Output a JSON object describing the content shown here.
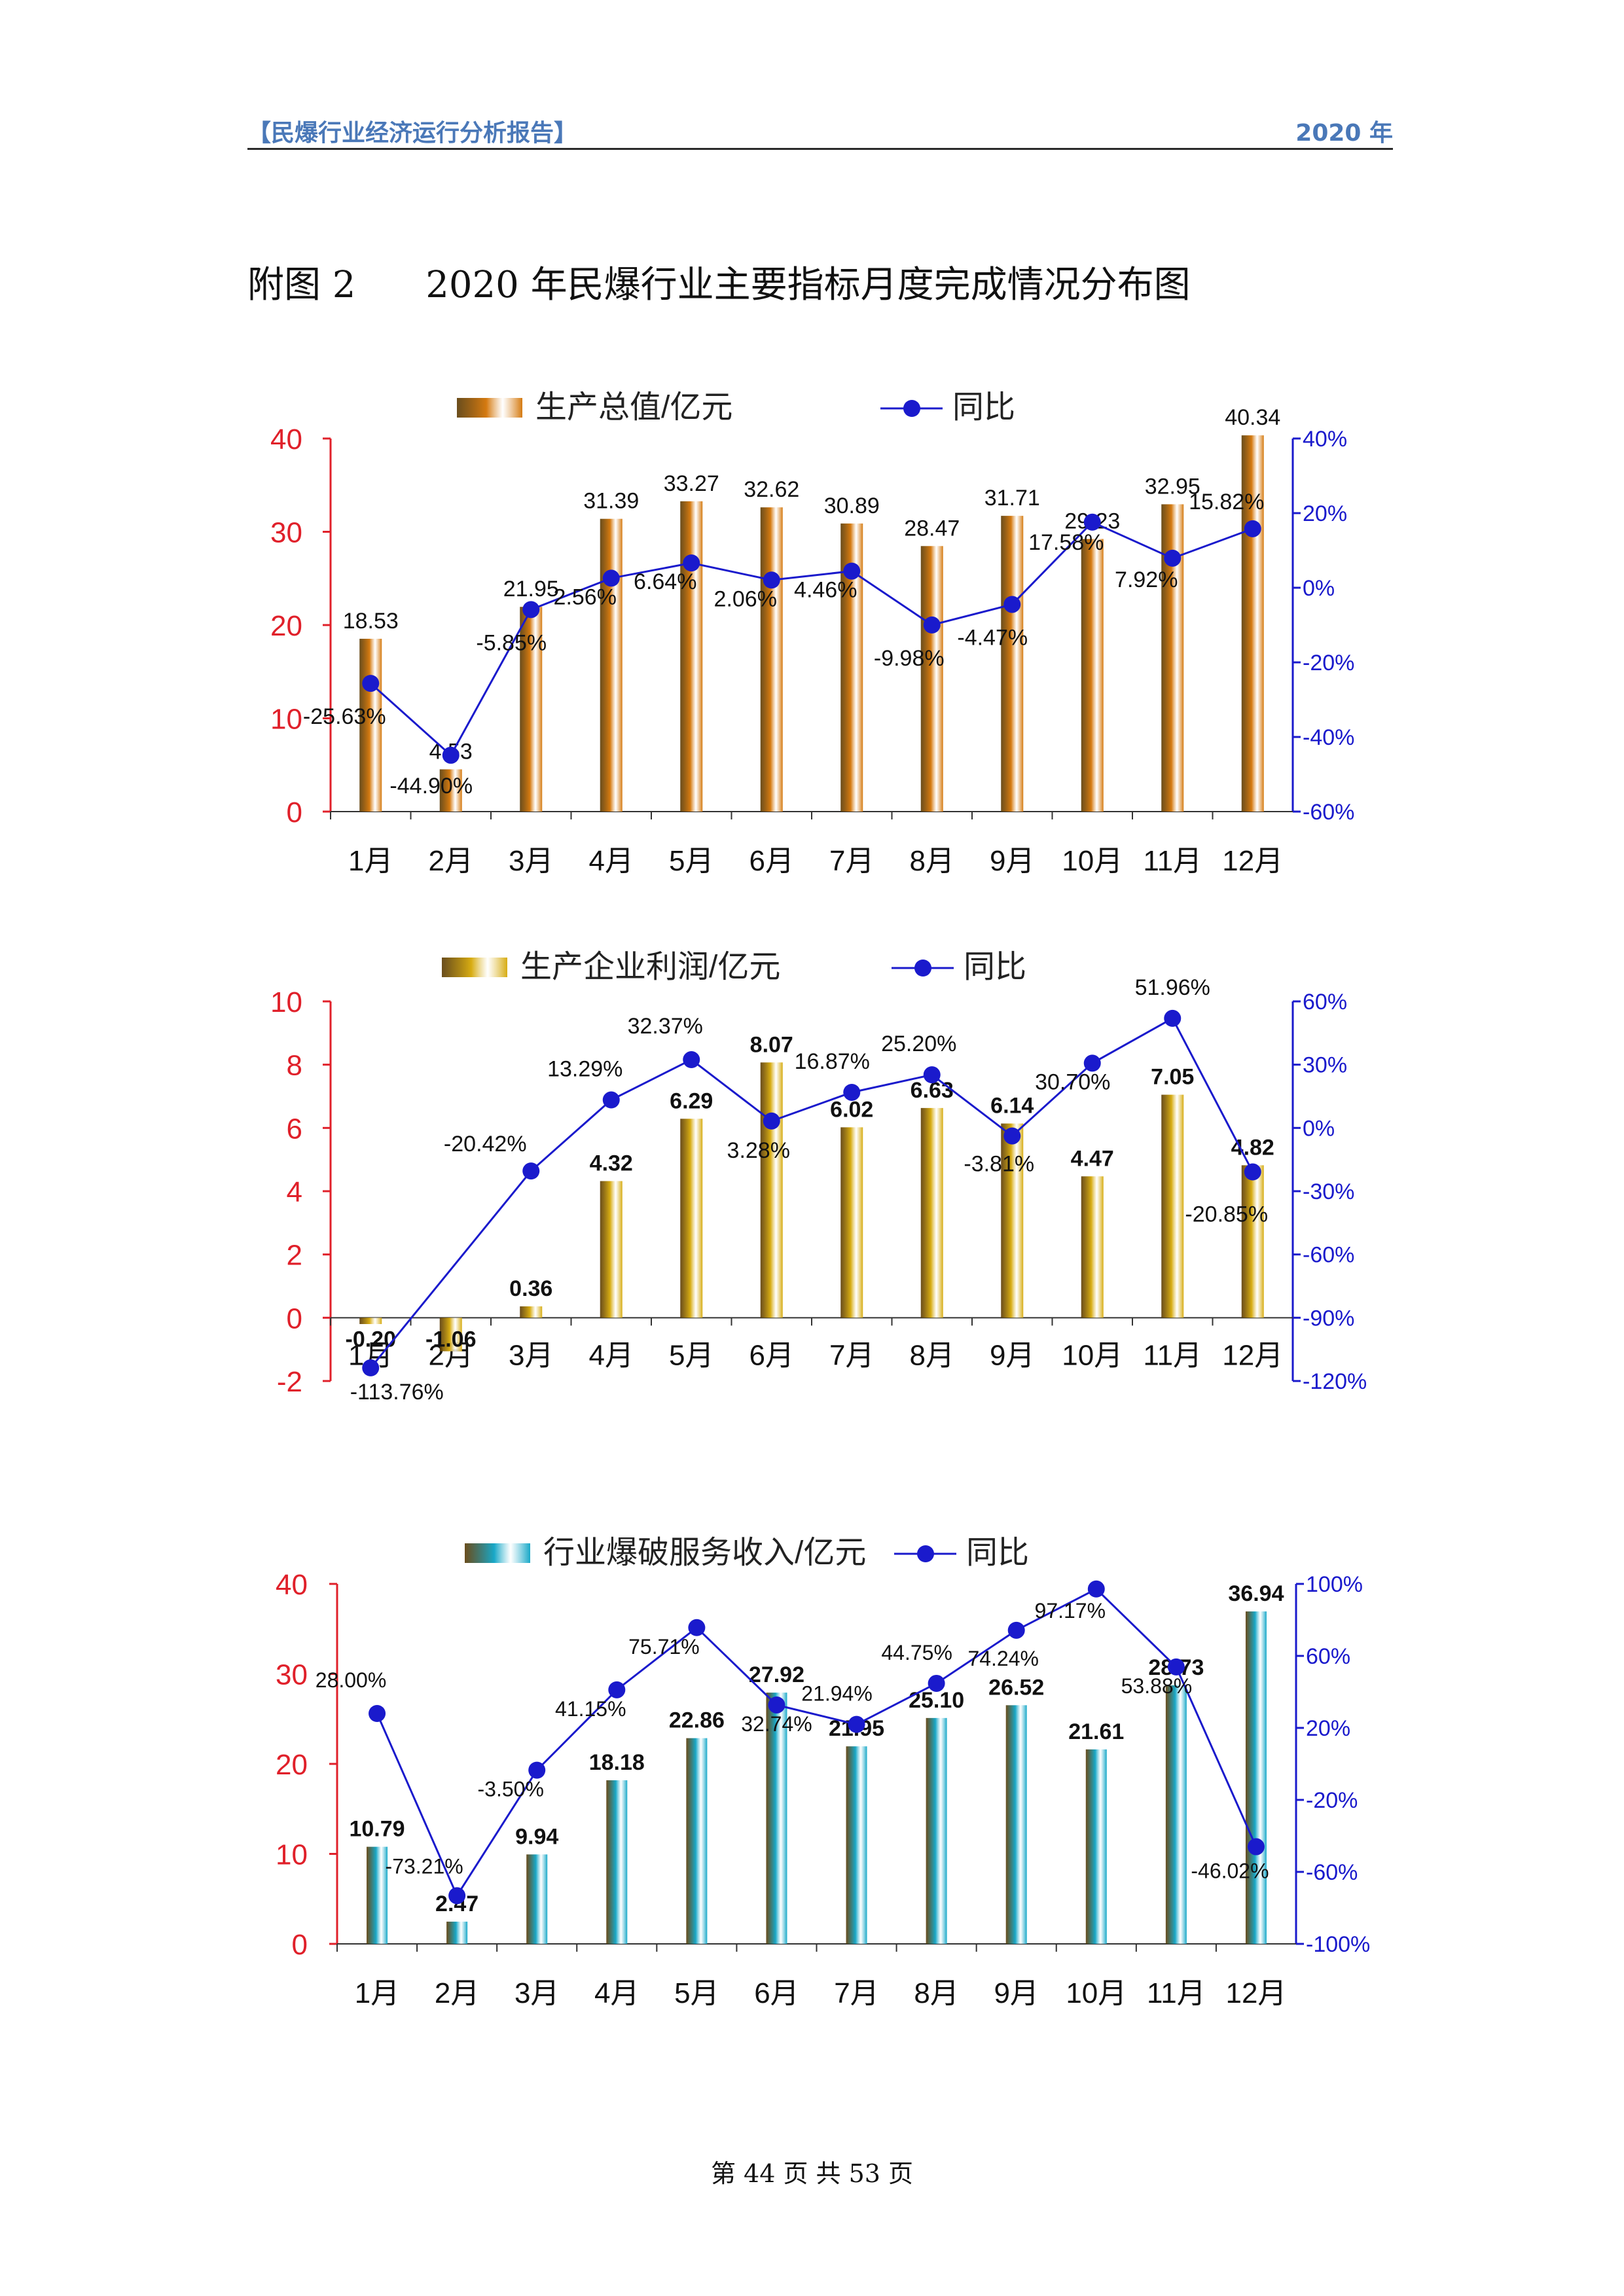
{
  "header": {
    "left": "【民爆行业经济运行分析报告】",
    "right": "2020 年"
  },
  "figure_title": {
    "label": "附图 2",
    "text": "2020 年民爆行业主要指标月度完成情况分布图"
  },
  "footer": {
    "text": "第 44 页 共 53 页"
  },
  "colors": {
    "left_axis": "#e0202a",
    "right_axis": "#1a1acc",
    "line": "#1a1acc",
    "bar1": "#d57a10",
    "bar2": "#d7ac12",
    "bar3": "#18a8c8"
  },
  "chart_data": [
    {
      "type": "bar",
      "legend_bar": "生产总值/亿元",
      "legend_line": "同比",
      "categories": [
        "1月",
        "2月",
        "3月",
        "4月",
        "5月",
        "6月",
        "7月",
        "8月",
        "9月",
        "10月",
        "11月",
        "12月"
      ],
      "series": [
        {
          "name": "生产总值/亿元",
          "type": "bar",
          "axis": "left",
          "values": [
            18.53,
            4.53,
            21.95,
            31.39,
            33.27,
            32.62,
            30.89,
            28.47,
            31.71,
            29.23,
            32.95,
            40.34
          ],
          "labels": [
            "18.53",
            "4.53",
            "21.95",
            "31.39",
            "33.27",
            "32.62",
            "30.89",
            "28.47",
            "31.71",
            "29.23",
            "32.95",
            "40.34"
          ]
        },
        {
          "name": "同比",
          "type": "line",
          "axis": "right",
          "values": [
            -25.63,
            -44.9,
            -5.85,
            2.56,
            6.64,
            2.06,
            4.46,
            -9.98,
            -4.47,
            17.58,
            7.92,
            15.82
          ],
          "labels": [
            "-25.63%",
            "-44.90%",
            "-5.85%",
            "2.56%",
            "6.64%",
            "2.06%",
            "4.46%",
            "-9.98%",
            "-4.47%",
            "17.58%",
            "7.92%",
            "15.82%"
          ]
        }
      ],
      "ylim_left": [
        0,
        40
      ],
      "ticks_left": [
        "0",
        "10",
        "20",
        "30",
        "40"
      ],
      "ylim_right": [
        -60,
        40
      ],
      "ticks_right": [
        "-60%",
        "-40%",
        "-20%",
        "0%",
        "20%",
        "40%"
      ],
      "bold_bar_labels": false
    },
    {
      "type": "bar",
      "legend_bar": "生产企业利润/亿元",
      "legend_line": "同比",
      "categories": [
        "1月",
        "2月",
        "3月",
        "4月",
        "5月",
        "6月",
        "7月",
        "8月",
        "9月",
        "10月",
        "11月",
        "12月"
      ],
      "series": [
        {
          "name": "生产企业利润/亿元",
          "type": "bar",
          "axis": "left",
          "values": [
            -0.2,
            -1.06,
            0.36,
            4.32,
            6.29,
            8.07,
            6.02,
            6.63,
            6.14,
            4.47,
            7.05,
            4.82
          ],
          "labels": [
            "-0.20",
            "-1.06",
            "0.36",
            "4.32",
            "6.29",
            "8.07",
            "6.02",
            "6.63",
            "6.14",
            "4.47",
            "7.05",
            "4.82"
          ]
        },
        {
          "name": "同比",
          "type": "line",
          "axis": "right",
          "values": [
            -113.76,
            null,
            -20.42,
            13.29,
            32.37,
            3.28,
            16.87,
            25.2,
            -3.81,
            30.7,
            51.96,
            -20.85
          ],
          "labels": [
            "-113.76%",
            "",
            "-20.42%",
            "13.29%",
            "32.37%",
            "3.28%",
            "16.87%",
            "25.20%",
            "-3.81%",
            "30.70%",
            "51.96%",
            "-20.85%"
          ]
        }
      ],
      "ylim_left": [
        -2,
        10
      ],
      "ticks_left": [
        "-2",
        "0",
        "2",
        "4",
        "6",
        "8",
        "10"
      ],
      "ylim_right": [
        -120,
        60
      ],
      "ticks_right": [
        "-120%",
        "-90%",
        "-60%",
        "-30%",
        "0%",
        "30%",
        "60%"
      ],
      "bold_bar_labels": true
    },
    {
      "type": "bar",
      "legend_bar": "行业爆破服务收入/亿元",
      "legend_line": "同比",
      "categories": [
        "1月",
        "2月",
        "3月",
        "4月",
        "5月",
        "6月",
        "7月",
        "8月",
        "9月",
        "10月",
        "11月",
        "12月"
      ],
      "series": [
        {
          "name": "行业爆破服务收入/亿元",
          "type": "bar",
          "axis": "left",
          "values": [
            10.79,
            2.47,
            9.94,
            18.18,
            22.86,
            27.92,
            21.95,
            25.1,
            26.52,
            21.61,
            28.73,
            36.94
          ],
          "labels": [
            "10.79",
            "2.47",
            "9.94",
            "18.18",
            "22.86",
            "27.92",
            "21.95",
            "25.10",
            "26.52",
            "21.61",
            "28.73",
            "36.94"
          ]
        },
        {
          "name": "同比",
          "type": "line",
          "axis": "right",
          "values": [
            28.0,
            -73.21,
            -3.5,
            41.15,
            75.71,
            32.74,
            21.94,
            44.75,
            74.24,
            97.17,
            53.88,
            -46.02
          ],
          "labels": [
            "28.00%",
            "-73.21%",
            "-3.50%",
            "41.15%",
            "75.71%",
            "32.74%",
            "21.94%",
            "44.75%",
            "74.24%",
            "97.17%",
            "53.88%",
            "-46.02%"
          ]
        }
      ],
      "ylim_left": [
        0,
        40
      ],
      "ticks_left": [
        "0",
        "10",
        "20",
        "30",
        "40"
      ],
      "ylim_right": [
        -100,
        100
      ],
      "ticks_right": [
        "-100%",
        "-60%",
        "-20%",
        "20%",
        "60%",
        "100%"
      ],
      "bold_bar_labels": true
    }
  ]
}
